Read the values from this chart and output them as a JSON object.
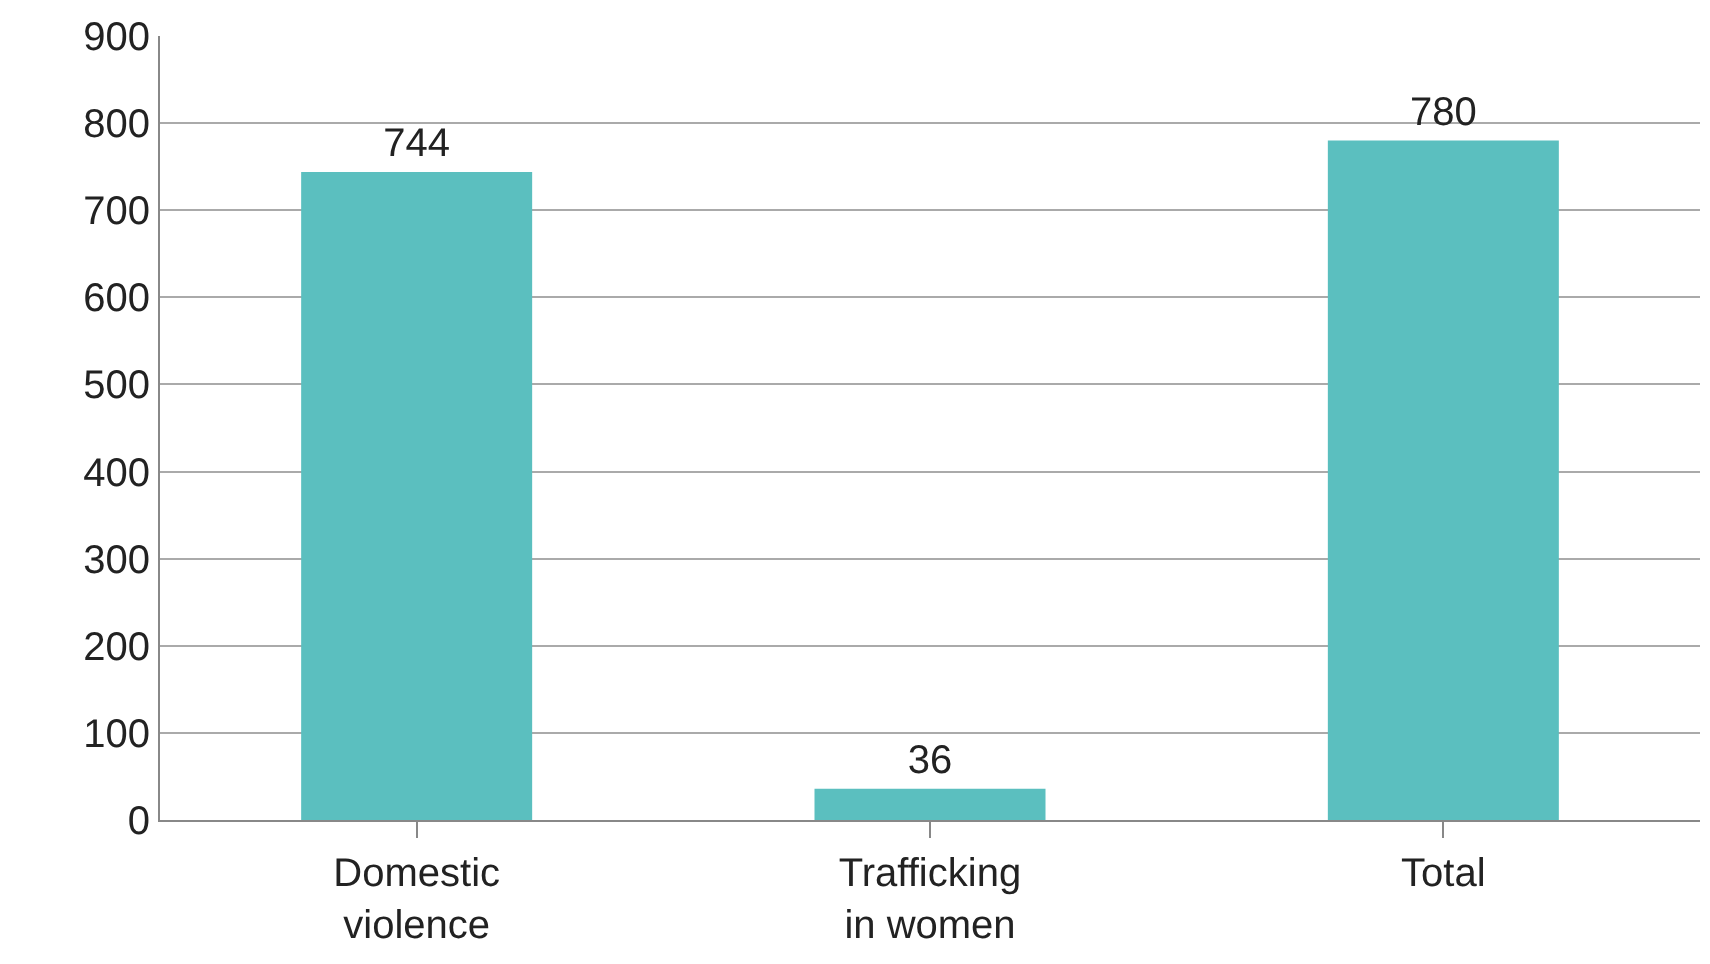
{
  "chart_data": {
    "type": "bar",
    "categories": [
      "Domestic\nviolence",
      "Trafficking\nin women",
      "Total"
    ],
    "values": [
      744,
      36,
      780
    ],
    "color": "#5bbfbf",
    "ylim": [
      0,
      900
    ],
    "yticks": [
      0,
      100,
      200,
      300,
      400,
      500,
      600,
      700,
      800,
      900
    ],
    "grid": "y",
    "data_labels": true
  }
}
